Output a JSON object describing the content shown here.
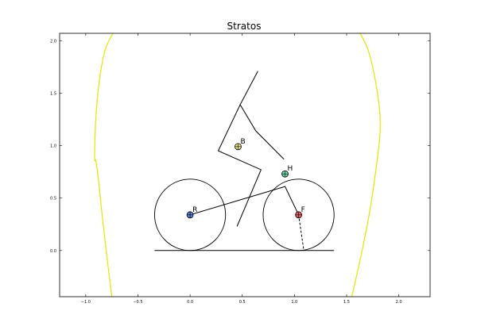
{
  "chart_data": {
    "type": "diagram",
    "title": "Stratos",
    "xlim": [
      -1.25,
      2.3
    ],
    "ylim": [
      -0.44,
      2.07
    ],
    "xticks": [
      -1.0,
      -0.5,
      0.0,
      0.5,
      1.0,
      1.5,
      2.0
    ],
    "yticks": [
      0.0,
      0.5,
      1.0,
      1.5,
      2.0
    ],
    "xtick_labels": [
      "−1.0",
      "−0.5",
      "0.0",
      "0.5",
      "1.0",
      "1.5",
      "2.0"
    ],
    "ytick_labels": [
      "0.0",
      "0.5",
      "1.0",
      "1.5",
      "2.0"
    ],
    "grid": false,
    "wheels": [
      {
        "name": "rear",
        "center": [
          0.0,
          0.34
        ],
        "radius": 0.34
      },
      {
        "name": "front",
        "center": [
          1.04,
          0.34
        ],
        "radius": 0.34
      }
    ],
    "ground_line": {
      "x": [
        -0.34,
        1.38
      ],
      "y": [
        0.0,
        0.0
      ]
    },
    "frame_line": {
      "x": [
        0.0,
        0.91,
        1.04
      ],
      "y": [
        0.34,
        0.61,
        0.34
      ]
    },
    "fork_dashed": {
      "x": [
        1.04,
        1.09
      ],
      "y": [
        0.34,
        0.0
      ]
    },
    "rider_line": {
      "x": [
        0.45,
        0.68,
        0.27,
        0.48,
        0.63,
        0.9
      ],
      "y": [
        0.23,
        0.77,
        0.95,
        1.39,
        1.14,
        0.87
      ]
    },
    "rider_upper": {
      "x": [
        0.48,
        0.65
      ],
      "y": [
        1.39,
        1.71
      ]
    },
    "boundary_curves": [
      {
        "color": "#e6e600",
        "x": [
          -0.75,
          -0.83,
          -0.9,
          -0.92,
          -0.9,
          -0.83,
          -0.74
        ],
        "y": [
          -0.44,
          0.2,
          0.9,
          0.82,
          1.4,
          1.9,
          2.07
        ]
      },
      {
        "color": "#e6e600",
        "x": [
          1.55,
          1.7,
          1.8,
          1.83,
          1.8,
          1.72,
          1.63
        ],
        "y": [
          -0.44,
          0.2,
          0.9,
          1.2,
          1.5,
          1.9,
          2.07
        ]
      }
    ],
    "points": [
      {
        "label": "B",
        "x": 0.46,
        "y": 0.99,
        "color": "#e6e08a"
      },
      {
        "label": "H",
        "x": 0.91,
        "y": 0.73,
        "color": "#74d9a9"
      },
      {
        "label": "R",
        "x": 0.0,
        "y": 0.34,
        "color": "#5b7fd8"
      },
      {
        "label": "F",
        "x": 1.04,
        "y": 0.34,
        "color": "#e06060"
      }
    ]
  }
}
